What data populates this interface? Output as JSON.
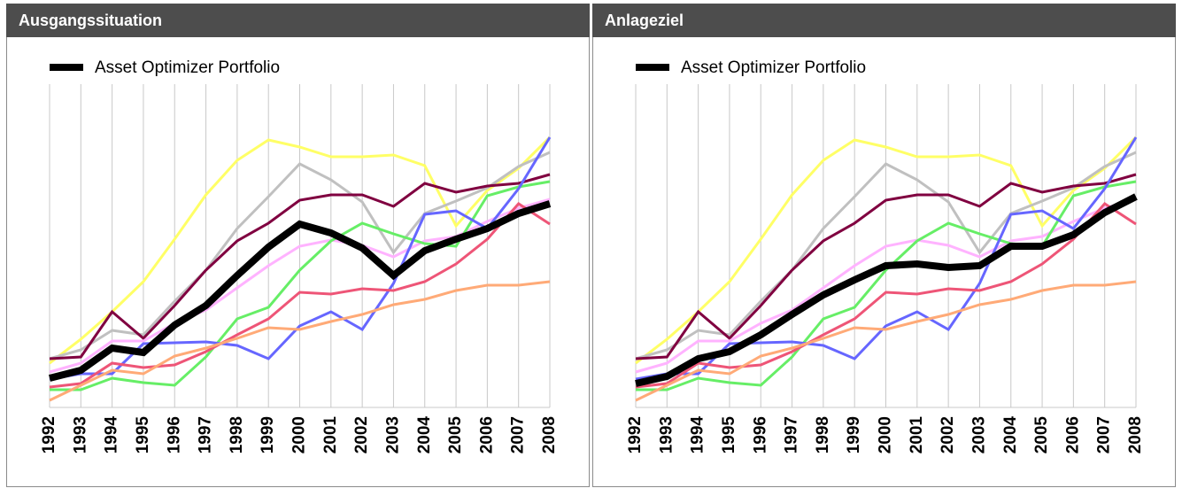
{
  "chart_data": [
    {
      "type": "line",
      "title": "Ausgangssituation",
      "categories": [
        "1992",
        "1993",
        "1994",
        "1995",
        "1996",
        "1997",
        "1998",
        "1999",
        "2000",
        "2001",
        "2002",
        "2003",
        "2004",
        "2005",
        "2006",
        "2007",
        "2008"
      ],
      "ylim": [
        0,
        365
      ],
      "grid": true,
      "grid_color": "#c8c8c8",
      "series": [
        {
          "color": "#ffff66",
          "values": [
            50,
            77,
            108,
            142,
            190,
            240,
            279,
            302,
            294,
            283,
            283,
            285,
            273,
            205,
            245,
            270,
            305
          ]
        },
        {
          "color": "#c0c0c0",
          "values": [
            55,
            65,
            87,
            82,
            120,
            155,
            202,
            238,
            275,
            257,
            232,
            175,
            219,
            233,
            248,
            272,
            288
          ]
        },
        {
          "color": "#800040",
          "values": [
            55,
            57,
            108,
            78,
            115,
            155,
            188,
            208,
            234,
            240,
            240,
            227,
            253,
            243,
            250,
            253,
            263
          ]
        },
        {
          "color": "#ffb3ff",
          "values": [
            40,
            50,
            75,
            75,
            95,
            110,
            135,
            160,
            182,
            189,
            183,
            170,
            188,
            193,
            210,
            225,
            235
          ]
        },
        {
          "color": "#66ee66",
          "values": [
            20,
            20,
            33,
            28,
            25,
            57,
            100,
            113,
            155,
            188,
            208,
            196,
            185,
            182,
            239,
            249,
            255
          ]
        },
        {
          "color": "#6666ff",
          "values": [
            32,
            38,
            38,
            72,
            73,
            74,
            70,
            55,
            92,
            108,
            88,
            140,
            218,
            222,
            202,
            247,
            305
          ]
        },
        {
          "color": "#ee5577",
          "values": [
            23,
            27,
            50,
            45,
            48,
            63,
            82,
            100,
            130,
            128,
            134,
            132,
            142,
            162,
            190,
            230,
            207
          ]
        },
        {
          "color": "#ffaa77",
          "values": [
            8,
            25,
            42,
            38,
            58,
            67,
            78,
            90,
            88,
            97,
            105,
            116,
            122,
            132,
            138,
            138,
            142
          ]
        },
        {
          "name": "Asset Optimizer Portfolio",
          "color": "#000000",
          "values": [
            33,
            42,
            67,
            62,
            93,
            115,
            149,
            181,
            207,
            197,
            180,
            149,
            177,
            190,
            202,
            219,
            230
          ]
        }
      ]
    },
    {
      "type": "line",
      "title": "Anlageziel",
      "categories": [
        "1992",
        "1993",
        "1994",
        "1995",
        "1996",
        "1997",
        "1998",
        "1999",
        "2000",
        "2001",
        "2002",
        "2003",
        "2004",
        "2005",
        "2006",
        "2007",
        "2008"
      ],
      "ylim": [
        0,
        365
      ],
      "grid": true,
      "grid_color": "#c8c8c8",
      "series": [
        {
          "color": "#ffff66",
          "values": [
            50,
            77,
            108,
            142,
            190,
            240,
            279,
            302,
            294,
            283,
            283,
            285,
            273,
            205,
            245,
            270,
            305
          ]
        },
        {
          "color": "#c0c0c0",
          "values": [
            55,
            65,
            87,
            82,
            120,
            155,
            202,
            238,
            275,
            257,
            232,
            175,
            219,
            233,
            248,
            272,
            288
          ]
        },
        {
          "color": "#800040",
          "values": [
            55,
            57,
            108,
            78,
            115,
            155,
            188,
            208,
            234,
            240,
            240,
            227,
            253,
            243,
            250,
            253,
            263
          ]
        },
        {
          "color": "#ffb3ff",
          "values": [
            40,
            50,
            75,
            75,
            95,
            110,
            135,
            160,
            182,
            189,
            183,
            170,
            188,
            193,
            210,
            225,
            235
          ]
        },
        {
          "color": "#66ee66",
          "values": [
            20,
            20,
            33,
            28,
            25,
            57,
            100,
            113,
            155,
            188,
            208,
            196,
            185,
            182,
            239,
            249,
            255
          ]
        },
        {
          "color": "#6666ff",
          "values": [
            32,
            38,
            38,
            72,
            73,
            74,
            70,
            55,
            92,
            108,
            88,
            140,
            218,
            222,
            202,
            247,
            305
          ]
        },
        {
          "color": "#ee5577",
          "values": [
            23,
            27,
            50,
            45,
            48,
            63,
            82,
            100,
            130,
            128,
            134,
            132,
            142,
            162,
            190,
            230,
            207
          ]
        },
        {
          "color": "#ffaa77",
          "values": [
            8,
            25,
            42,
            38,
            58,
            67,
            78,
            90,
            88,
            97,
            105,
            116,
            122,
            132,
            138,
            138,
            142
          ]
        },
        {
          "name": "Asset Optimizer Portfolio",
          "color": "#000000",
          "values": [
            27,
            35,
            55,
            63,
            82,
            105,
            127,
            144,
            160,
            162,
            158,
            160,
            182,
            182,
            195,
            220,
            238
          ]
        }
      ]
    }
  ]
}
